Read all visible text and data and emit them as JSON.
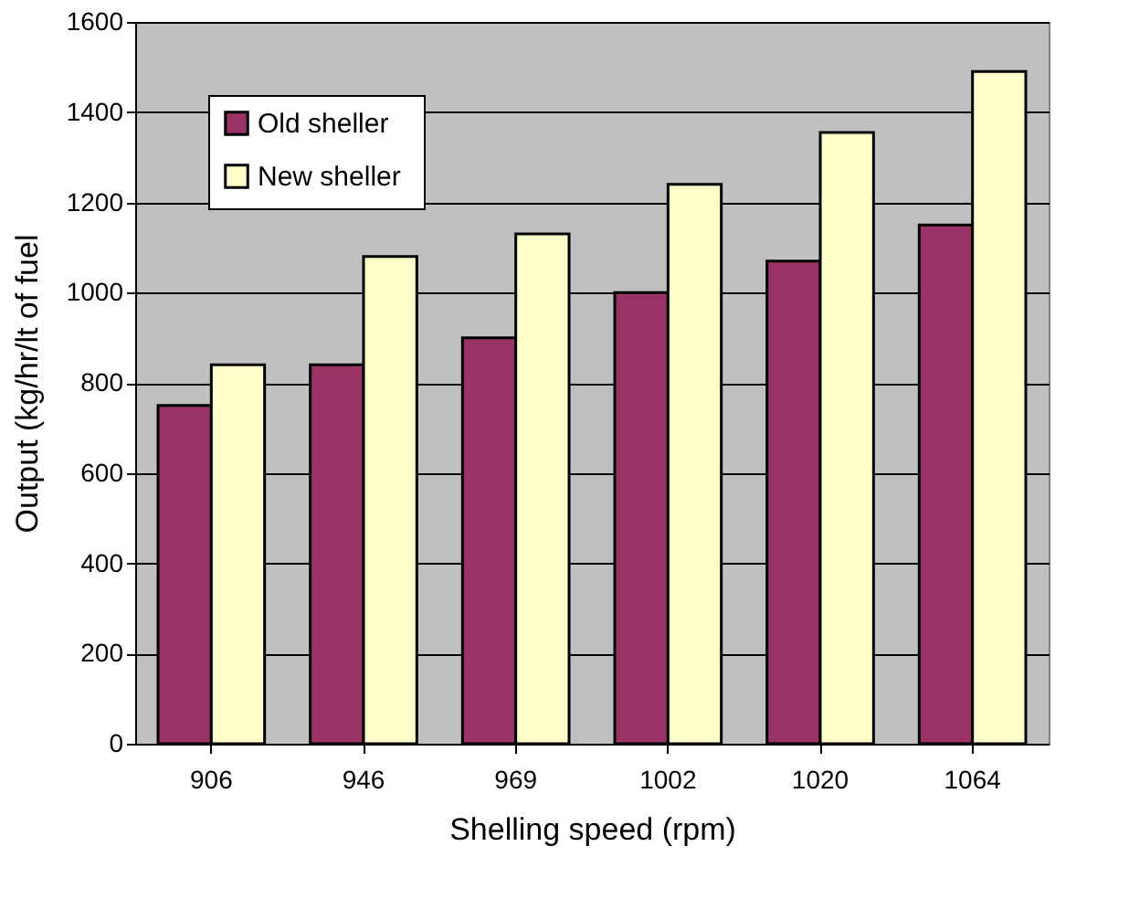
{
  "chart_data": {
    "type": "bar",
    "xlabel": "Shelling speed (rpm)",
    "ylabel": "Output (kg/hr/lt of fuel",
    "categories": [
      "906",
      "946",
      "969",
      "1002",
      "1020",
      "1064"
    ],
    "series": [
      {
        "name": "Old sheller",
        "color": "#993366",
        "values": [
          750,
          840,
          900,
          1000,
          1070,
          1150
        ]
      },
      {
        "name": "New  sheller",
        "color": "#ffffcc",
        "values": [
          840,
          1080,
          1130,
          1240,
          1355,
          1490
        ]
      }
    ],
    "ylim": [
      0,
      1600
    ],
    "yticks": [
      0,
      200,
      400,
      600,
      800,
      1000,
      1200,
      1400,
      1600
    ],
    "grid": "y",
    "legend": "top left"
  }
}
